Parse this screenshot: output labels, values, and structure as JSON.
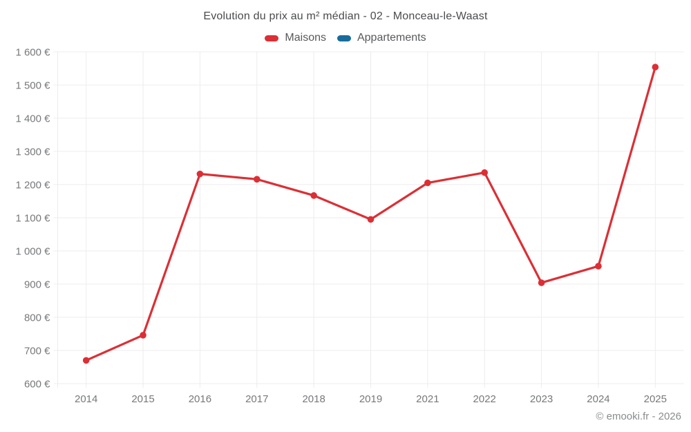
{
  "page": {
    "background": "#ffffff"
  },
  "footer": "© emooki.fr - 2026",
  "colors": {
    "maisons": "#dc2f35",
    "appartements": "#186c9c",
    "gridline": "#ececec",
    "axis_text": "#77787a",
    "title_text": "#4a4b4d",
    "legend_text": "#58595b",
    "footer_text": "#8a8c8e"
  },
  "chart_data": {
    "type": "line",
    "title": "Evolution du prix au m² médian - 02 - Monceau-le-Waast",
    "categories": [
      "2014",
      "2015",
      "2016",
      "2017",
      "2018",
      "2019",
      "2021",
      "2022",
      "2023",
      "2024",
      "2025"
    ],
    "series": [
      {
        "name": "Maisons",
        "color": "#dc2f35",
        "values": [
          670,
          746,
          1232,
          1216,
          1167,
          1095,
          1205,
          1236,
          904,
          954,
          1554
        ]
      },
      {
        "name": "Appartements",
        "color": "#186c9c",
        "values": []
      }
    ],
    "xlabel": "",
    "ylabel": "",
    "ylim": [
      600,
      1600
    ],
    "y_tick_step": 100,
    "y_tick_format": "{value} €",
    "grid": true,
    "legend_position": "top",
    "markers": true
  }
}
